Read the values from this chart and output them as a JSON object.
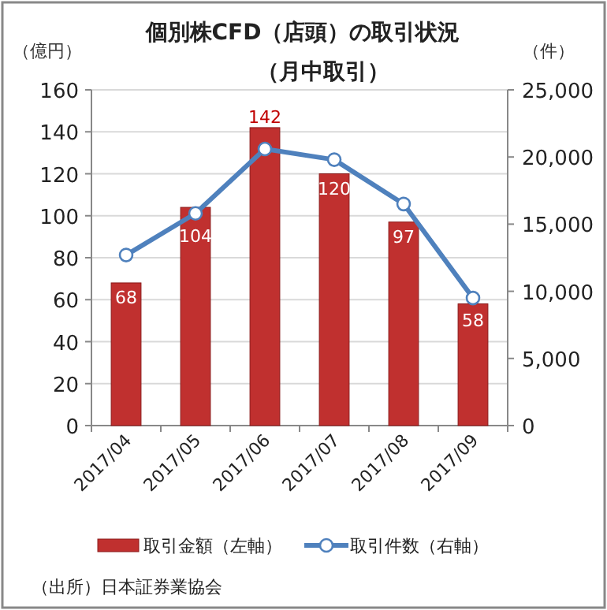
{
  "chart_data": {
    "type": "bar",
    "title": "個別株CFD（店頭）の取引状況",
    "subtitle": "（月中取引）",
    "ylabel": "（億円）",
    "y2label": "（件）",
    "categories": [
      "2017/04",
      "2017/05",
      "2017/06",
      "2017/07",
      "2017/08",
      "2017/09"
    ],
    "series": [
      {
        "name": "取引金額（左軸）",
        "color": "#c0302f",
        "values": [
          68,
          104,
          142,
          120,
          97,
          58
        ],
        "value_labels": [
          "68",
          "104",
          "142",
          "120",
          "97",
          "58"
        ]
      },
      {
        "name": "取引件数（右軸）",
        "type": "line",
        "axis": "y2",
        "color": "#4f81bd",
        "marker": "circle",
        "values": [
          12700,
          15800,
          20600,
          19800,
          16500,
          9500
        ]
      }
    ],
    "ylim": [
      0,
      160
    ],
    "yticks": [
      0,
      20,
      40,
      60,
      80,
      100,
      120,
      140,
      160
    ],
    "y2lim": [
      0,
      25000
    ],
    "y2ticks": [
      {
        "value": 0,
        "label": "0"
      },
      {
        "value": 5000,
        "label": "5,000"
      },
      {
        "value": 10000,
        "label": "10,000"
      },
      {
        "value": 15000,
        "label": "15,000"
      },
      {
        "value": 20000,
        "label": "20,000"
      },
      {
        "value": 25000,
        "label": "25,000"
      }
    ],
    "grid": "y",
    "legend": "bottom",
    "annotations": [
      "（出所）日本証券業協会"
    ]
  }
}
